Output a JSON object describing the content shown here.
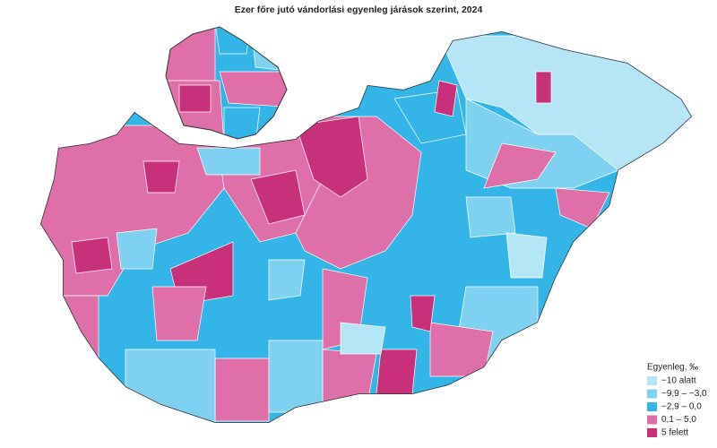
{
  "title": "Ezer főre jutó vándorlási egyenleg járások szerint, 2024",
  "legend": {
    "title": "Egyenleg, ‰",
    "items": [
      {
        "label": "−10 alatt",
        "color": "#b5e6f8"
      },
      {
        "label": "−9,9 –  −3,0",
        "color": "#7fd1f1"
      },
      {
        "label": "−2,9 –  0,0",
        "color": "#33b5e8"
      },
      {
        "label": "0,1 –  5,0",
        "color": "#df6fa8"
      },
      {
        "label": "5 felett",
        "color": "#c8307c"
      }
    ]
  }
}
